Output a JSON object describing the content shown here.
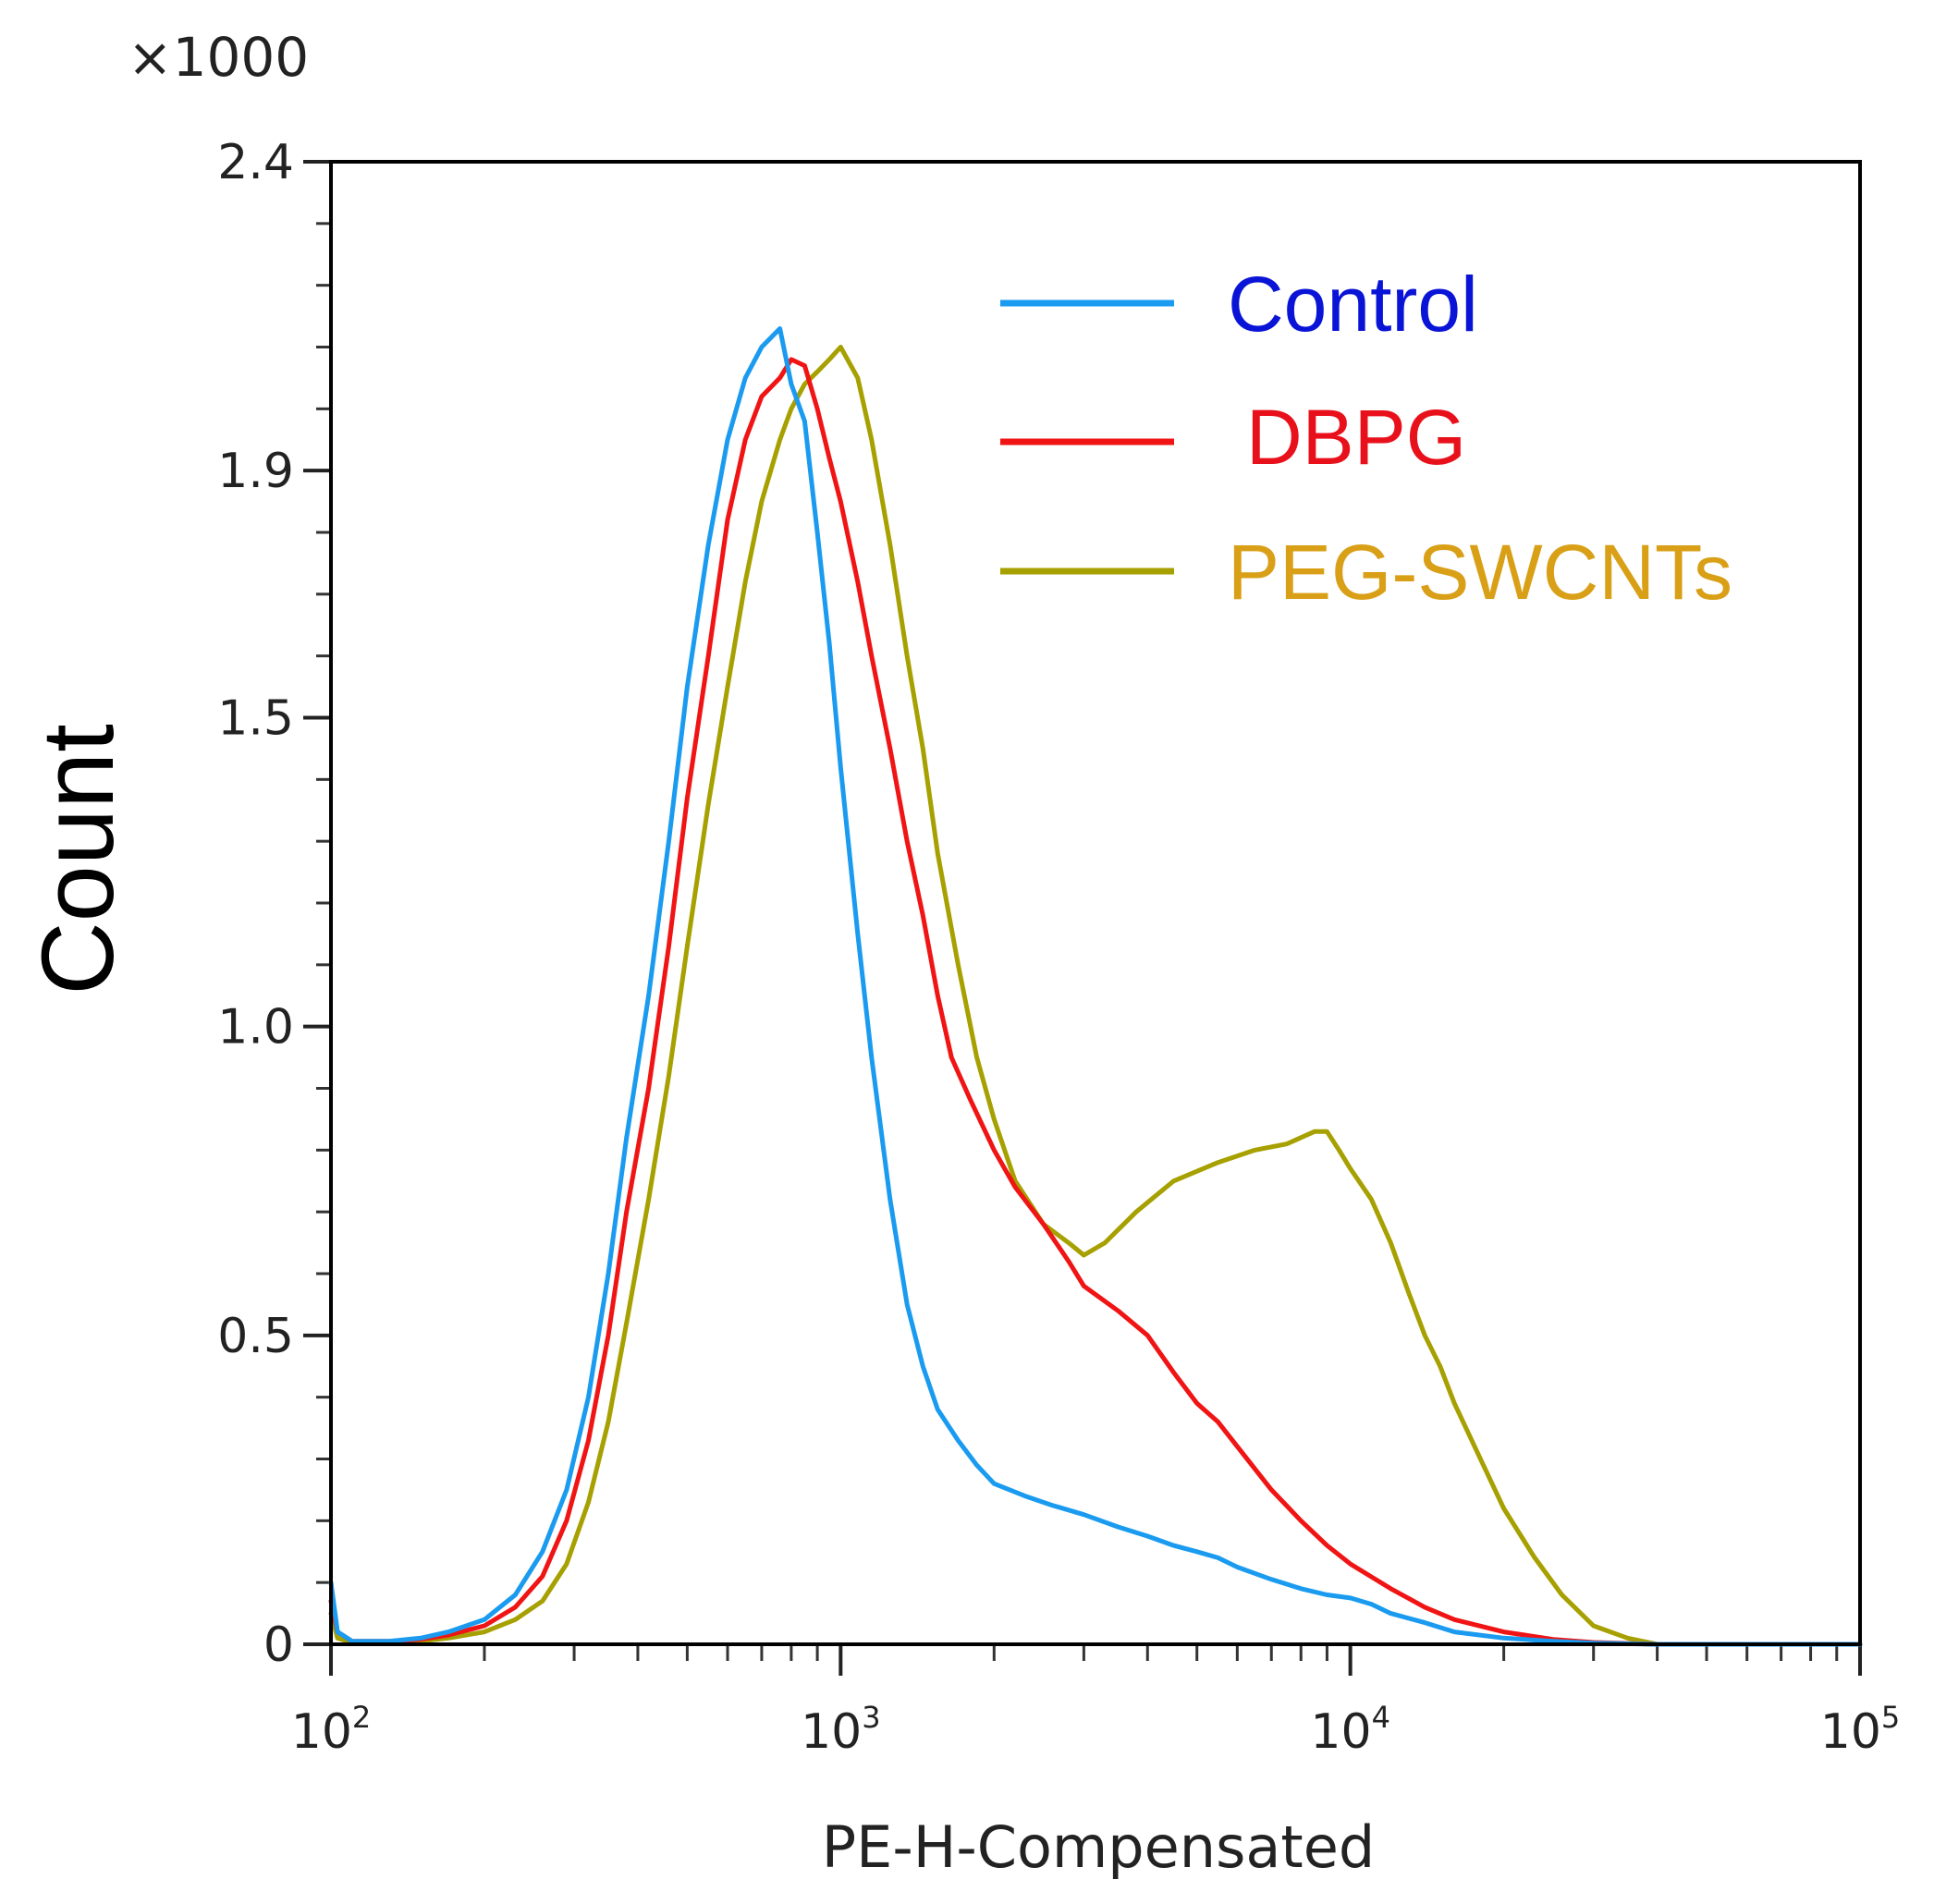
{
  "chart_data": {
    "type": "line",
    "title": "",
    "xlabel": "PE-H-Compensated",
    "ylabel": "Count",
    "y_multiplier": "×1000",
    "x_scale": "log",
    "xlim": [
      100,
      100000
    ],
    "ylim": [
      0,
      2.4
    ],
    "x_ticks": [
      {
        "value": 100,
        "base": "10",
        "exp": "2"
      },
      {
        "value": 1000,
        "base": "10",
        "exp": "3"
      },
      {
        "value": 10000,
        "base": "10",
        "exp": "4"
      },
      {
        "value": 100000,
        "base": "10",
        "exp": "5"
      }
    ],
    "y_ticks": [
      {
        "value": 0,
        "label": "0"
      },
      {
        "value": 0.5,
        "label": "0.5"
      },
      {
        "value": 1.0,
        "label": "1.0"
      },
      {
        "value": 1.5,
        "label": "1.5"
      },
      {
        "value": 1.9,
        "label": "1.9"
      },
      {
        "value": 2.4,
        "label": "2.4"
      }
    ],
    "legend_position": "top-right",
    "series": [
      {
        "name": "Control",
        "color": "#1a9bf0",
        "label_color": "#0a14d6",
        "points": [
          [
            100,
            0.1
          ],
          [
            103,
            0.02
          ],
          [
            110,
            0.005
          ],
          [
            130,
            0.005
          ],
          [
            150,
            0.01
          ],
          [
            170,
            0.02
          ],
          [
            200,
            0.04
          ],
          [
            230,
            0.08
          ],
          [
            260,
            0.15
          ],
          [
            290,
            0.25
          ],
          [
            320,
            0.4
          ],
          [
            350,
            0.6
          ],
          [
            380,
            0.82
          ],
          [
            420,
            1.05
          ],
          [
            460,
            1.3
          ],
          [
            500,
            1.55
          ],
          [
            550,
            1.78
          ],
          [
            600,
            1.95
          ],
          [
            650,
            2.05
          ],
          [
            700,
            2.1
          ],
          [
            760,
            2.13
          ],
          [
            800,
            2.04
          ],
          [
            850,
            1.98
          ],
          [
            900,
            1.8
          ],
          [
            950,
            1.62
          ],
          [
            1000,
            1.42
          ],
          [
            1080,
            1.15
          ],
          [
            1150,
            0.95
          ],
          [
            1250,
            0.72
          ],
          [
            1350,
            0.55
          ],
          [
            1450,
            0.45
          ],
          [
            1550,
            0.38
          ],
          [
            1700,
            0.33
          ],
          [
            1850,
            0.29
          ],
          [
            2000,
            0.26
          ],
          [
            2300,
            0.24
          ],
          [
            2600,
            0.225
          ],
          [
            3000,
            0.21
          ],
          [
            3500,
            0.19
          ],
          [
            4000,
            0.175
          ],
          [
            4500,
            0.16
          ],
          [
            5000,
            0.15
          ],
          [
            5500,
            0.14
          ],
          [
            6000,
            0.125
          ],
          [
            7000,
            0.105
          ],
          [
            8000,
            0.09
          ],
          [
            9000,
            0.08
          ],
          [
            10000,
            0.075
          ],
          [
            11000,
            0.065
          ],
          [
            12000,
            0.05
          ],
          [
            14000,
            0.035
          ],
          [
            16000,
            0.02
          ],
          [
            20000,
            0.01
          ],
          [
            25000,
            0.005
          ],
          [
            30000,
            0.002
          ],
          [
            40000,
            0.0
          ],
          [
            100000,
            0.0
          ]
        ]
      },
      {
        "name": "DBPG",
        "color": "#f01414",
        "label_color": "#e8101a",
        "points": [
          [
            100,
            0.07
          ],
          [
            103,
            0.02
          ],
          [
            110,
            0.005
          ],
          [
            130,
            0.005
          ],
          [
            150,
            0.008
          ],
          [
            170,
            0.015
          ],
          [
            200,
            0.03
          ],
          [
            230,
            0.06
          ],
          [
            260,
            0.11
          ],
          [
            290,
            0.2
          ],
          [
            320,
            0.33
          ],
          [
            350,
            0.5
          ],
          [
            380,
            0.7
          ],
          [
            420,
            0.9
          ],
          [
            460,
            1.13
          ],
          [
            500,
            1.37
          ],
          [
            550,
            1.6
          ],
          [
            600,
            1.82
          ],
          [
            650,
            1.95
          ],
          [
            700,
            2.02
          ],
          [
            760,
            2.05
          ],
          [
            800,
            2.08
          ],
          [
            850,
            2.07
          ],
          [
            900,
            2.0
          ],
          [
            950,
            1.92
          ],
          [
            1000,
            1.85
          ],
          [
            1080,
            1.72
          ],
          [
            1150,
            1.6
          ],
          [
            1250,
            1.45
          ],
          [
            1350,
            1.3
          ],
          [
            1450,
            1.18
          ],
          [
            1550,
            1.05
          ],
          [
            1650,
            0.95
          ],
          [
            1800,
            0.88
          ],
          [
            2000,
            0.8
          ],
          [
            2200,
            0.74
          ],
          [
            2500,
            0.68
          ],
          [
            2800,
            0.62
          ],
          [
            3000,
            0.58
          ],
          [
            3500,
            0.54
          ],
          [
            4000,
            0.5
          ],
          [
            4500,
            0.44
          ],
          [
            5000,
            0.39
          ],
          [
            5500,
            0.36
          ],
          [
            6000,
            0.32
          ],
          [
            7000,
            0.25
          ],
          [
            8000,
            0.2
          ],
          [
            9000,
            0.16
          ],
          [
            10000,
            0.13
          ],
          [
            12000,
            0.09
          ],
          [
            14000,
            0.06
          ],
          [
            16000,
            0.04
          ],
          [
            20000,
            0.02
          ],
          [
            25000,
            0.008
          ],
          [
            30000,
            0.003
          ],
          [
            40000,
            0.0
          ],
          [
            100000,
            0.0
          ]
        ]
      },
      {
        "name": "PEG-SWCNTs",
        "color": "#a6a000",
        "label_color": "#d9a017",
        "points": [
          [
            100,
            0.05
          ],
          [
            103,
            0.01
          ],
          [
            110,
            0.003
          ],
          [
            130,
            0.003
          ],
          [
            150,
            0.005
          ],
          [
            170,
            0.01
          ],
          [
            200,
            0.02
          ],
          [
            230,
            0.04
          ],
          [
            260,
            0.07
          ],
          [
            290,
            0.13
          ],
          [
            320,
            0.23
          ],
          [
            350,
            0.36
          ],
          [
            380,
            0.52
          ],
          [
            420,
            0.72
          ],
          [
            460,
            0.92
          ],
          [
            500,
            1.13
          ],
          [
            550,
            1.36
          ],
          [
            600,
            1.55
          ],
          [
            650,
            1.72
          ],
          [
            700,
            1.85
          ],
          [
            760,
            1.95
          ],
          [
            800,
            2.0
          ],
          [
            850,
            2.04
          ],
          [
            900,
            2.06
          ],
          [
            950,
            2.08
          ],
          [
            1000,
            2.1
          ],
          [
            1080,
            2.05
          ],
          [
            1150,
            1.95
          ],
          [
            1250,
            1.78
          ],
          [
            1350,
            1.6
          ],
          [
            1450,
            1.45
          ],
          [
            1550,
            1.28
          ],
          [
            1700,
            1.1
          ],
          [
            1850,
            0.95
          ],
          [
            2000,
            0.85
          ],
          [
            2200,
            0.75
          ],
          [
            2500,
            0.68
          ],
          [
            2800,
            0.65
          ],
          [
            3000,
            0.63
          ],
          [
            3300,
            0.65
          ],
          [
            3800,
            0.7
          ],
          [
            4500,
            0.75
          ],
          [
            5500,
            0.78
          ],
          [
            6500,
            0.8
          ],
          [
            7500,
            0.81
          ],
          [
            8500,
            0.83
          ],
          [
            9000,
            0.83
          ],
          [
            9500,
            0.8
          ],
          [
            10000,
            0.77
          ],
          [
            11000,
            0.72
          ],
          [
            12000,
            0.65
          ],
          [
            13000,
            0.57
          ],
          [
            14000,
            0.5
          ],
          [
            15000,
            0.45
          ],
          [
            16000,
            0.39
          ],
          [
            18000,
            0.3
          ],
          [
            20000,
            0.22
          ],
          [
            23000,
            0.14
          ],
          [
            26000,
            0.08
          ],
          [
            30000,
            0.03
          ],
          [
            35000,
            0.01
          ],
          [
            40000,
            0.0
          ],
          [
            100000,
            0.0
          ]
        ]
      }
    ]
  }
}
